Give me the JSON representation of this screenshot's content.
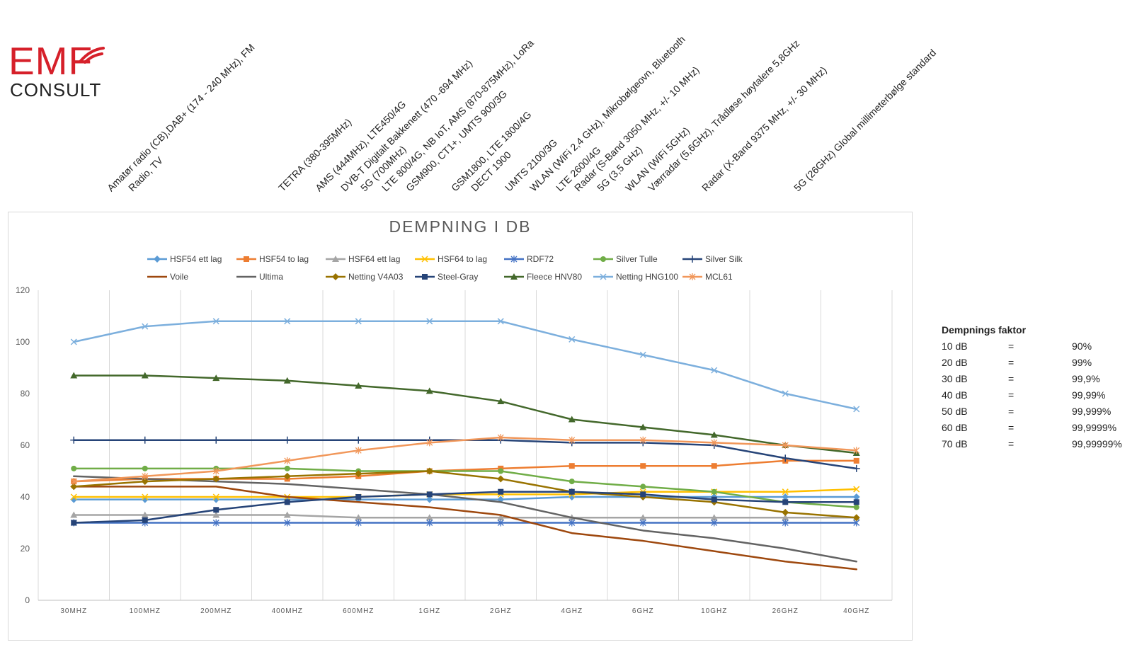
{
  "logo": {
    "line1": "EMF",
    "line2": "CONSULT"
  },
  "bands": [
    "Amatør radio (CB),DAB+ (174 - 240 MHz), FM",
    "Radio, TV",
    "TETRA (380-395MHz)",
    "AMS (444MHz), LTE450/4G",
    "DVB-T Digitalt Bakkenett (470 -694 MHz)",
    "5G (700MHz)",
    "LTE 800/4G, NB IoT, AMS (870-875MHz), LoRa",
    "GSM900, CT1+, UMTS 900/3G",
    "GSM1800, LTE 1800/4G",
    "DECT 1900",
    "UMTS 2100/3G",
    "WLAN (WiFi 2,4 GHz), Mikrobølgeovn, Bluetooth",
    "LTE 2600/4G",
    "Radar (S-Band 3050 MHz, +/- 10 MHz)",
    "5G (3,5 GHz)",
    "WLAN (WiFi 5GHz)",
    "Værradar (5,6GHz), Trådløse høytalere 5,8GHz",
    "Radar (X-Band 9375 MHz, +/- 30 MHz)",
    "5G (26GHz) Global millimeterbølge standard"
  ],
  "factor_table": {
    "title": "Dempnings faktor",
    "rows": [
      {
        "db": "10 dB",
        "eq": "=",
        "pct": "90%"
      },
      {
        "db": "20 dB",
        "eq": "=",
        "pct": "99%"
      },
      {
        "db": "30 dB",
        "eq": "=",
        "pct": "99,9%"
      },
      {
        "db": "40 dB",
        "eq": "=",
        "pct": "99,99%"
      },
      {
        "db": "50 dB",
        "eq": "=",
        "pct": "99,999%"
      },
      {
        "db": "60 dB",
        "eq": "=",
        "pct": "99,9999%"
      },
      {
        "db": "70 dB",
        "eq": "=",
        "pct": "99,99999%"
      }
    ]
  },
  "chart_data": {
    "type": "line",
    "title": "DEMPNING I DB",
    "xlabel": "",
    "ylabel": "",
    "categories": [
      "30MHZ",
      "100MHZ",
      "200MHZ",
      "400MHZ",
      "600MHZ",
      "1GHZ",
      "2GHZ",
      "4GHZ",
      "6GHZ",
      "10GHZ",
      "26GHZ",
      "40GHZ"
    ],
    "ylim": [
      0,
      120
    ],
    "yticks": [
      0,
      20,
      40,
      60,
      80,
      100,
      120
    ],
    "grid": "vertical",
    "legend": "top",
    "series": [
      {
        "name": "HSF54 ett lag",
        "color": "#5b9bd5",
        "marker": "diamond",
        "values": [
          39,
          39,
          39,
          39,
          39,
          39,
          39,
          40,
          40,
          40,
          40,
          40
        ]
      },
      {
        "name": "HSF54 to lag",
        "color": "#ed7d31",
        "marker": "square",
        "values": [
          46,
          47,
          47,
          47,
          48,
          50,
          51,
          52,
          52,
          52,
          54,
          54
        ]
      },
      {
        "name": "HSF64 ett lag",
        "color": "#a5a5a5",
        "marker": "triangle",
        "values": [
          33,
          33,
          33,
          33,
          32,
          32,
          32,
          32,
          32,
          32,
          32,
          32
        ]
      },
      {
        "name": "HSF64 to lag",
        "color": "#ffc000",
        "marker": "x",
        "values": [
          40,
          40,
          40,
          40,
          40,
          41,
          41,
          41,
          42,
          42,
          42,
          43
        ]
      },
      {
        "name": "RDF72",
        "color": "#4472c4",
        "marker": "star",
        "values": [
          30,
          30,
          30,
          30,
          30,
          30,
          30,
          30,
          30,
          30,
          30,
          30
        ]
      },
      {
        "name": "Silver Tulle",
        "color": "#70ad47",
        "marker": "circle",
        "values": [
          51,
          51,
          51,
          51,
          50,
          50,
          50,
          46,
          44,
          42,
          38,
          36
        ]
      },
      {
        "name": "Silver Silk",
        "color": "#264478",
        "marker": "plus",
        "values": [
          62,
          62,
          62,
          62,
          62,
          62,
          62,
          61,
          61,
          60,
          55,
          51
        ]
      },
      {
        "name": "Voile",
        "color": "#9e480e",
        "marker": "none",
        "values": [
          44,
          44,
          44,
          40,
          38,
          36,
          33,
          26,
          23,
          19,
          15,
          12
        ]
      },
      {
        "name": "Ultima",
        "color": "#636363",
        "marker": "none",
        "values": [
          48,
          47,
          46,
          45,
          43,
          41,
          38,
          32,
          27,
          24,
          20,
          15
        ]
      },
      {
        "name": "Netting V4A03",
        "color": "#997300",
        "marker": "diamond",
        "values": [
          44,
          46,
          47,
          48,
          49,
          50,
          47,
          42,
          40,
          38,
          34,
          32
        ]
      },
      {
        "name": "Steel-Gray",
        "color": "#264478",
        "marker": "square",
        "values": [
          30,
          31,
          35,
          38,
          40,
          41,
          42,
          42,
          41,
          39,
          38,
          38
        ]
      },
      {
        "name": "Fleece HNV80",
        "color": "#43682b",
        "marker": "triangle",
        "values": [
          87,
          87,
          86,
          85,
          83,
          81,
          77,
          70,
          67,
          64,
          60,
          57
        ]
      },
      {
        "name": "Netting HNG100",
        "color": "#7cafdd",
        "marker": "x",
        "values": [
          100,
          106,
          108,
          108,
          108,
          108,
          108,
          101,
          95,
          89,
          80,
          74
        ]
      },
      {
        "name": "MCL61",
        "color": "#f1975a",
        "marker": "star",
        "values": [
          46,
          48,
          50,
          54,
          58,
          61,
          63,
          62,
          62,
          61,
          60,
          58
        ]
      }
    ]
  }
}
